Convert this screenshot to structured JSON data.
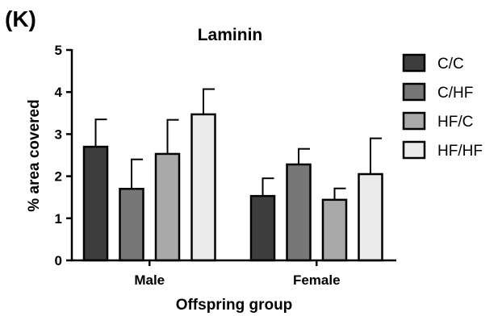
{
  "panel_label": "(K)",
  "chart_data": {
    "type": "bar",
    "title": "Laminin",
    "xlabel": "Offspring group",
    "ylabel": "% area covered",
    "categories": [
      "Male",
      "Female"
    ],
    "ylim": [
      0,
      5
    ],
    "yticks": [
      0,
      1,
      2,
      3,
      4,
      5
    ],
    "grid": false,
    "legend_position": "right",
    "error_bars": true,
    "series": [
      {
        "name": "C/C",
        "color": "#3d3d3d",
        "values": [
          2.7,
          1.53
        ],
        "errors": [
          0.65,
          0.42
        ]
      },
      {
        "name": "C/HF",
        "color": "#777777",
        "values": [
          1.7,
          2.28
        ],
        "errors": [
          0.7,
          0.37
        ]
      },
      {
        "name": "HF/C",
        "color": "#a9a9a9",
        "values": [
          2.53,
          1.44
        ],
        "errors": [
          0.81,
          0.27
        ]
      },
      {
        "name": "HF/HF",
        "color": "#ebebeb",
        "values": [
          3.47,
          2.05
        ],
        "errors": [
          0.6,
          0.85
        ]
      }
    ]
  }
}
